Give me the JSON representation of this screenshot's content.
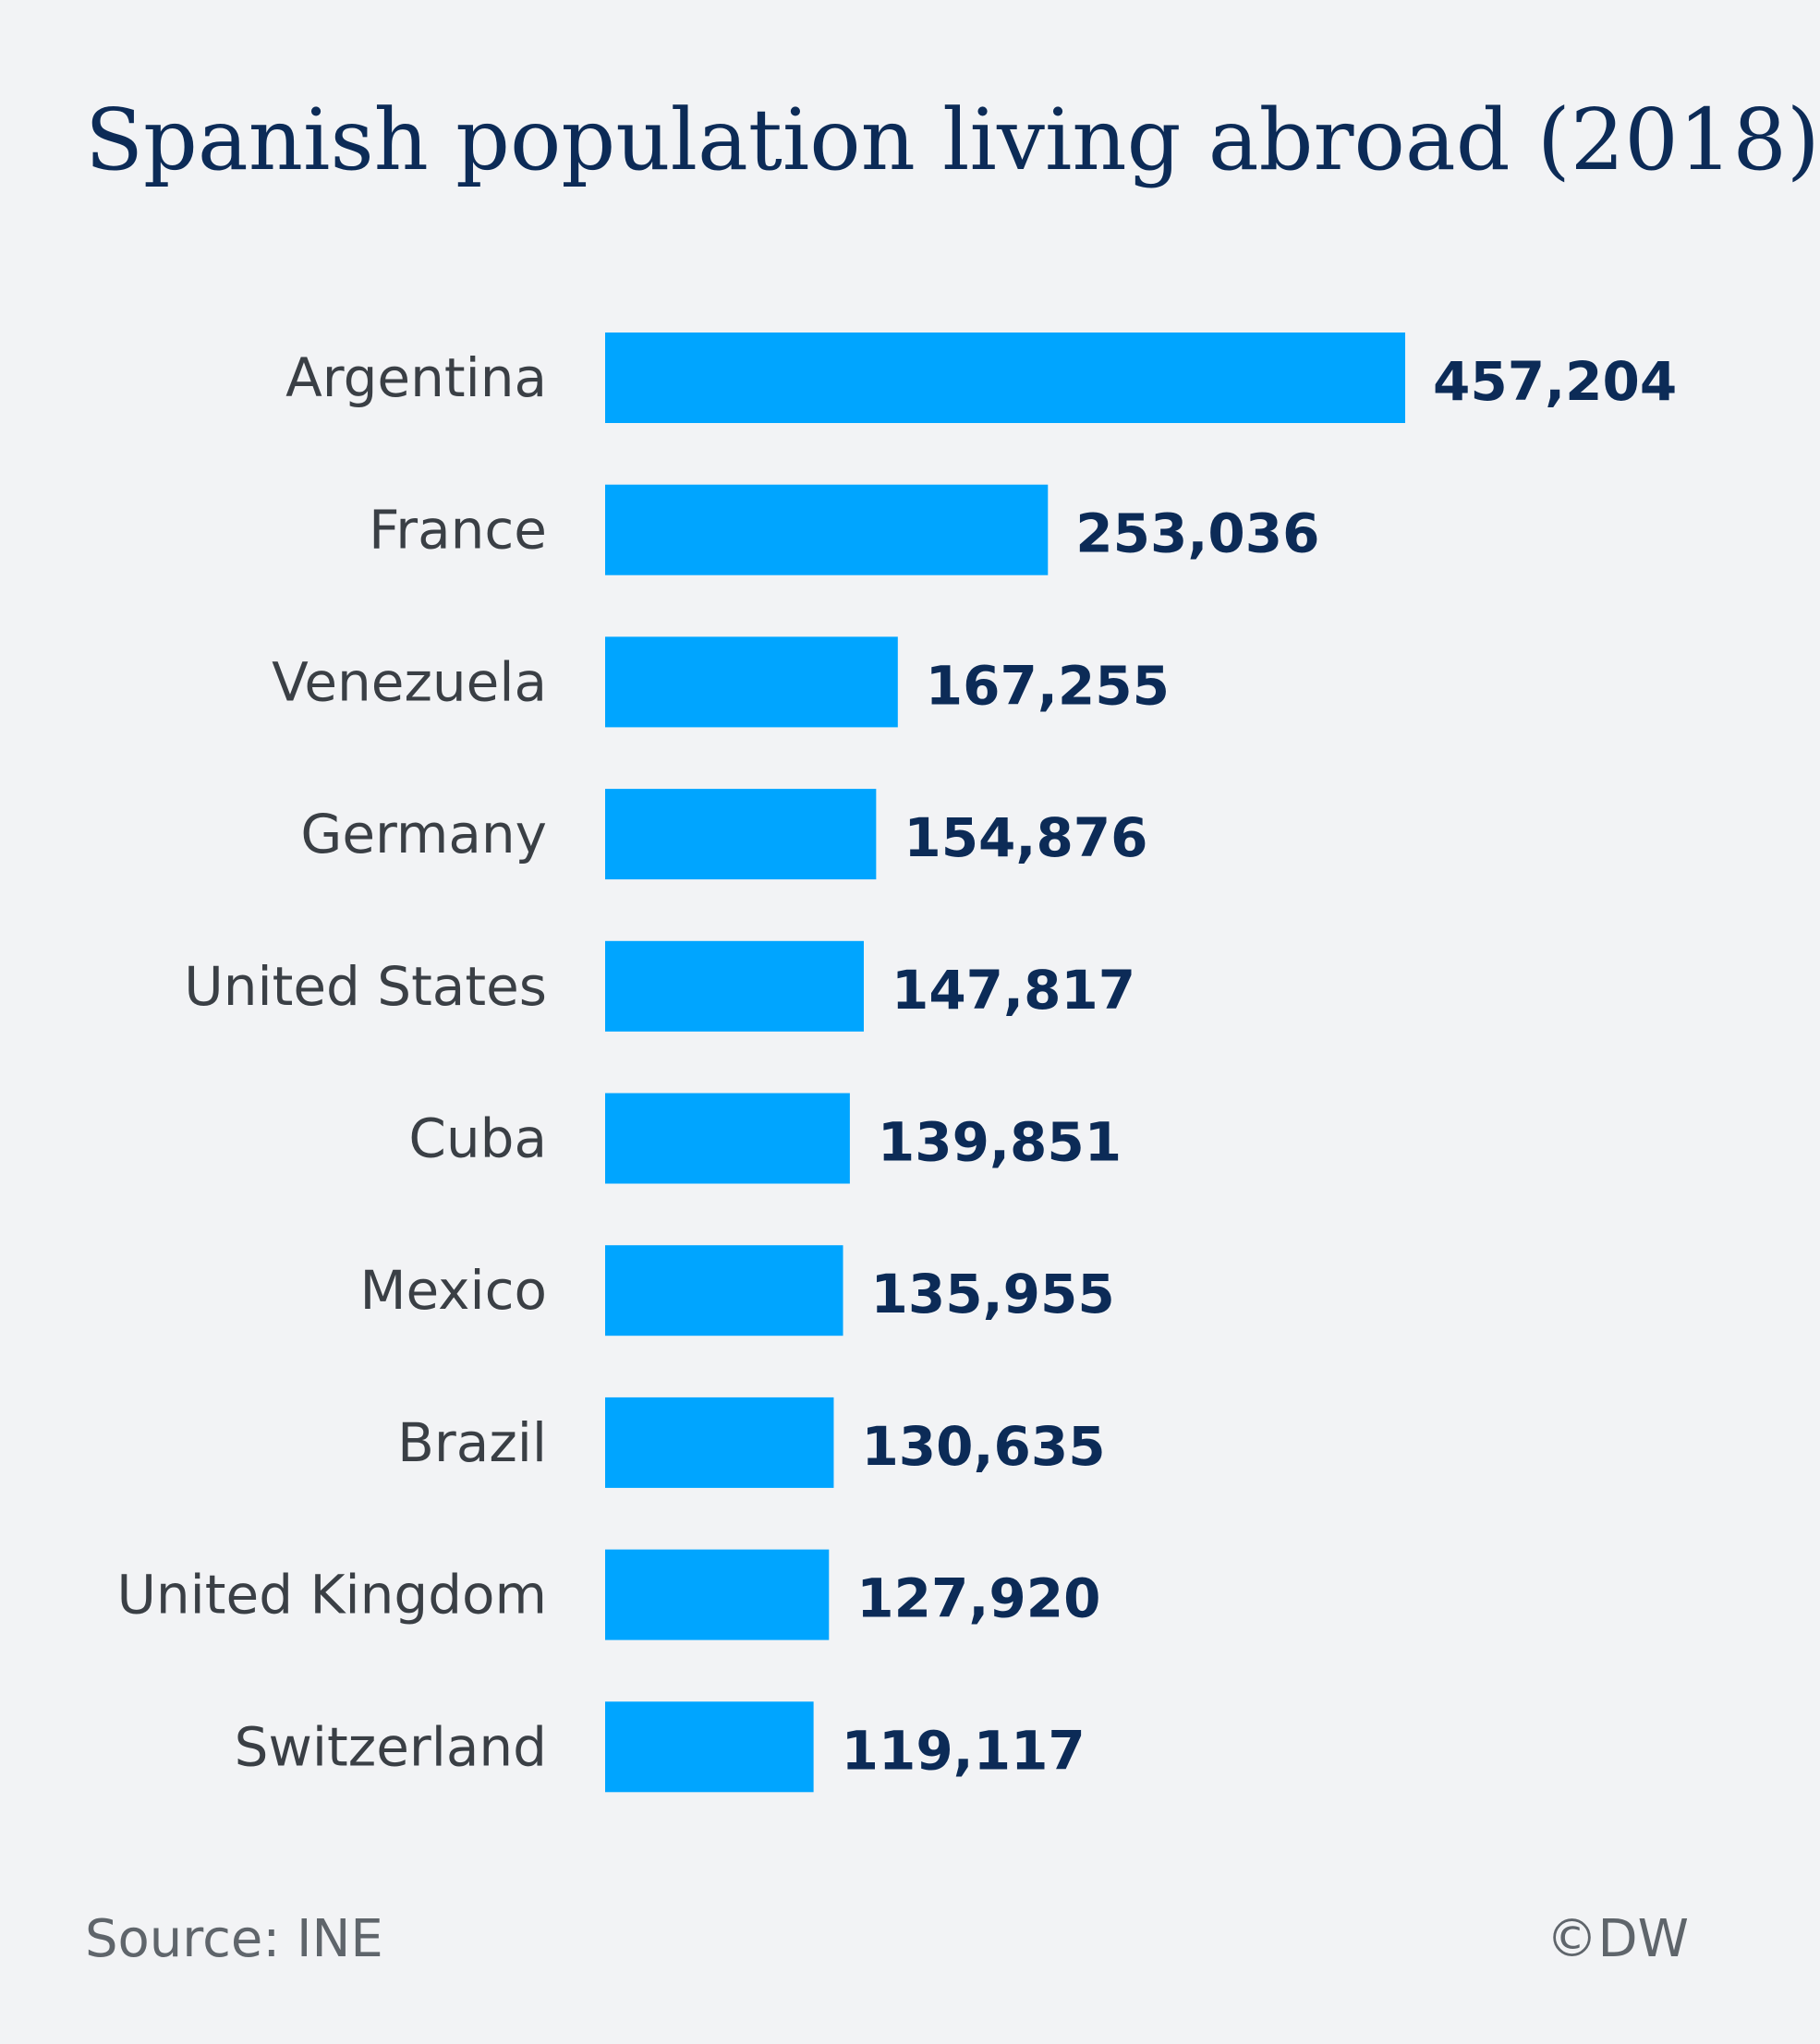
{
  "title": "Spanish population living abroad (2018)",
  "source": "Source: INE",
  "credit": "©DW",
  "colors": {
    "background": "#f2f3f5",
    "bar": "#00a5ff",
    "value_text": "#0c2b57",
    "label_text": "#3a3f45",
    "footer_text": "#5f656b"
  },
  "chart_data": {
    "type": "bar",
    "orientation": "horizontal",
    "title": "Spanish population living abroad (2018)",
    "categories": [
      "Argentina",
      "France",
      "Venezuela",
      "Germany",
      "United States",
      "Cuba",
      "Mexico",
      "Brazil",
      "United Kingdom",
      "Switzerland"
    ],
    "values": [
      457204,
      253036,
      167255,
      154876,
      147817,
      139851,
      135955,
      130635,
      127920,
      119117
    ],
    "value_labels": [
      "457,204",
      "253,036",
      "167,255",
      "154,876",
      "147,817",
      "139,851",
      "135,955",
      "130,635",
      "127,920",
      "119,117"
    ],
    "xlabel": "",
    "ylabel": "",
    "xlim": [
      0,
      457204
    ],
    "grid": false,
    "legend": "none"
  }
}
